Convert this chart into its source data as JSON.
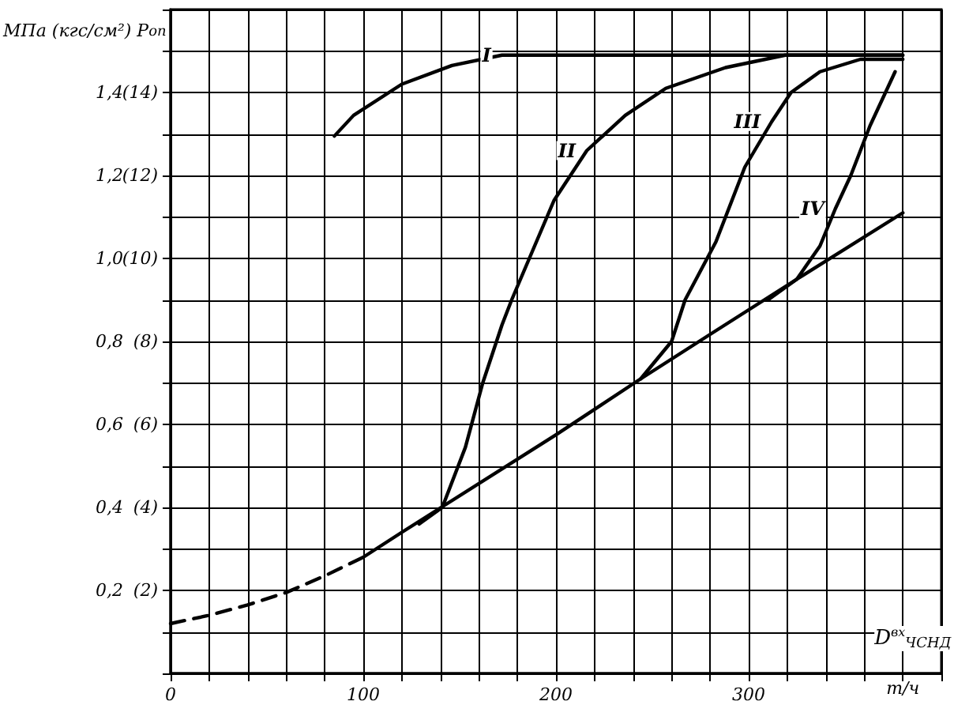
{
  "chart_data": {
    "type": "line",
    "ylabel": "МПа (кгс/см²) P$_{оп}$",
    "xlabel": "т/ч",
    "annotations": [
      "D$^{вх}$$_{ЧСНД}$"
    ],
    "xlim": [
      0,
      400
    ],
    "ylim": [
      0,
      1.6
    ],
    "xticks": [
      0,
      {
        "value": 20,
        "label": null
      },
      {
        "value": 40,
        "label": null
      },
      {
        "value": 60,
        "label": null
      },
      {
        "value": 80,
        "label": null
      },
      100,
      {
        "value": 120,
        "label": null
      },
      {
        "value": 140,
        "label": null
      },
      {
        "value": 160,
        "label": null
      },
      {
        "value": 180,
        "label": null
      },
      200,
      {
        "value": 220,
        "label": null
      },
      {
        "value": 240,
        "label": null
      },
      {
        "value": 260,
        "label": null
      },
      {
        "value": 280,
        "label": null
      },
      300,
      {
        "value": 320,
        "label": null
      },
      {
        "value": 340,
        "label": null
      },
      {
        "value": 360,
        "label": null
      },
      {
        "value": 380,
        "label": null
      },
      {
        "value": 400,
        "label": null
      }
    ],
    "yticks": [
      {
        "value": 0,
        "label": null
      },
      {
        "value": 0.1,
        "label": null
      },
      {
        "value": 0.2,
        "label": "0,2"
      },
      {
        "value": 0.3,
        "label": null
      },
      {
        "value": 0.4,
        "label": "0,4"
      },
      {
        "value": 0.5,
        "label": null
      },
      {
        "value": 0.6,
        "label": "0,6"
      },
      {
        "value": 0.7,
        "label": null
      },
      {
        "value": 0.8,
        "label": "0,8"
      },
      {
        "value": 0.9,
        "label": null
      },
      {
        "value": 1.0,
        "label": "1,0"
      },
      {
        "value": 1.1,
        "label": null
      },
      {
        "value": 1.2,
        "label": "1,2"
      },
      {
        "value": 1.3,
        "label": null
      },
      {
        "value": 1.4,
        "label": "1,4"
      },
      {
        "value": 1.5,
        "label": null
      },
      {
        "value": 1.6,
        "label": null
      }
    ],
    "y2lim": [
      0,
      16
    ],
    "y2ticks": [
      {
        "value": 2,
        "label": "(2)"
      },
      {
        "value": 4,
        "label": "(4)"
      },
      {
        "value": 6,
        "label": "(6)"
      },
      {
        "value": 8,
        "label": "(8)"
      },
      {
        "value": 10,
        "label": "(10)"
      },
      {
        "value": 12,
        "label": "(12)"
      },
      {
        "value": 14,
        "label": "(14)"
      }
    ],
    "grid": true,
    "marker": "none",
    "series": [
      {
        "color": "#000000",
        "line_style": "dashed",
        "x": [
          0,
          20,
          40,
          60,
          80,
          100
        ],
        "values": [
          0.12,
          0.14,
          0.165,
          0.195,
          0.235,
          0.28
        ]
      },
      {
        "color": "#000000",
        "line_style": "solid",
        "x": [
          100,
          120,
          200,
          244,
          281,
          325,
          380
        ],
        "values": [
          0.28,
          0.34,
          0.575,
          0.71,
          0.82,
          0.95,
          1.11
        ]
      },
      {
        "name": "I",
        "color": "#000000",
        "line_style": "solid",
        "x": [
          85,
          95,
          120,
          146,
          172,
          200,
          250,
          300,
          380
        ],
        "values": [
          1.295,
          1.345,
          1.42,
          1.465,
          1.49,
          1.49,
          1.49,
          1.49,
          1.49
        ]
      },
      {
        "name": "II",
        "color": "#000000",
        "line_style": "solid",
        "x": [
          129,
          141,
          153,
          162,
          172,
          177,
          199,
          216,
          236,
          257,
          288,
          319,
          350,
          380
        ],
        "values": [
          0.36,
          0.4,
          0.545,
          0.7,
          0.84,
          0.9,
          1.14,
          1.26,
          1.345,
          1.41,
          1.46,
          1.49,
          1.49,
          1.49
        ]
      },
      {
        "name": "III",
        "color": "#000000",
        "line_style": "solid",
        "x": [
          244,
          260,
          267,
          283,
          298,
          312,
          322,
          337,
          358,
          380
        ],
        "values": [
          0.71,
          0.8,
          0.9,
          1.04,
          1.22,
          1.33,
          1.4,
          1.45,
          1.48,
          1.48
        ]
      },
      {
        "name": "IV",
        "color": "#000000",
        "line_style": "solid",
        "x": [
          310,
          325,
          337,
          345,
          353,
          363,
          376
        ],
        "values": [
          0.9,
          0.95,
          1.03,
          1.12,
          1.2,
          1.32,
          1.45
        ]
      }
    ]
  }
}
